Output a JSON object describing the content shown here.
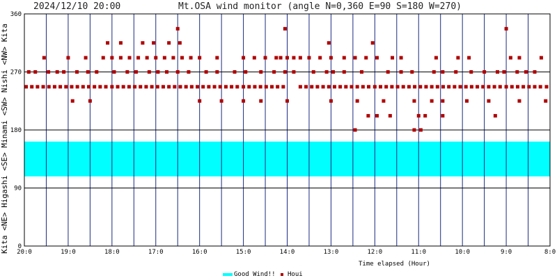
{
  "chart_data": {
    "type": "scatter",
    "title": "Mt.OSA wind monitor (angle N=0,360 E=90 S=180 W=270)",
    "timestamp": "2024/12/10 20:00",
    "xlabel": "Time elapsed (Hour)",
    "ylabel": "Kita <NE> Higashi <SE> Minami <SW> Nishi <NW> Kita",
    "x_ticks": [
      "20:0",
      "19:0",
      "18:0",
      "17:0",
      "16:0",
      "15:0",
      "14:0",
      "13:0",
      "12:0",
      "11:0",
      "10:0",
      "9:0",
      "8:0"
    ],
    "y_ticks": [
      0,
      90,
      180,
      270,
      360
    ],
    "ylim": [
      0,
      360
    ],
    "xlim": [
      0,
      12
    ],
    "x_axis_note": "hours elapsed before 2024/12/10 20:00, axis runs right to left in time",
    "grid": true,
    "legend_position": "bottom",
    "band": {
      "name": "Good Wind!!",
      "from": 108,
      "to": 162,
      "color": "#00ffff"
    },
    "series": [
      {
        "name": "Houi",
        "color": "#b00000",
        "points": [
          [
            0.04,
            247
          ],
          [
            0.17,
            247
          ],
          [
            0.3,
            247
          ],
          [
            0.43,
            247
          ],
          [
            0.56,
            247
          ],
          [
            0.69,
            247
          ],
          [
            0.82,
            247
          ],
          [
            0.95,
            247
          ],
          [
            1.08,
            247
          ],
          [
            1.21,
            247
          ],
          [
            1.34,
            247
          ],
          [
            1.47,
            247
          ],
          [
            1.6,
            247
          ],
          [
            1.73,
            247
          ],
          [
            1.86,
            247
          ],
          [
            2.0,
            247
          ],
          [
            2.13,
            247
          ],
          [
            2.26,
            247
          ],
          [
            2.39,
            247
          ],
          [
            2.52,
            247
          ],
          [
            2.65,
            247
          ],
          [
            2.78,
            247
          ],
          [
            2.91,
            247
          ],
          [
            3.04,
            247
          ],
          [
            3.17,
            247
          ],
          [
            3.3,
            247
          ],
          [
            3.43,
            247
          ],
          [
            3.56,
            247
          ],
          [
            3.69,
            247
          ],
          [
            3.82,
            247
          ],
          [
            3.95,
            247
          ],
          [
            4.08,
            247
          ],
          [
            4.21,
            247
          ],
          [
            4.34,
            247
          ],
          [
            4.47,
            247
          ],
          [
            4.6,
            247
          ],
          [
            4.73,
            247
          ],
          [
            4.86,
            247
          ],
          [
            5.0,
            247
          ],
          [
            5.13,
            247
          ],
          [
            5.26,
            247
          ],
          [
            5.39,
            247
          ],
          [
            5.52,
            247
          ],
          [
            5.65,
            247
          ],
          [
            5.78,
            247
          ],
          [
            5.91,
            247
          ],
          [
            6.3,
            247
          ],
          [
            6.43,
            247
          ],
          [
            6.56,
            247
          ],
          [
            6.69,
            247
          ],
          [
            6.82,
            247
          ],
          [
            6.95,
            247
          ],
          [
            7.08,
            247
          ],
          [
            7.21,
            247
          ],
          [
            7.34,
            247
          ],
          [
            7.47,
            247
          ],
          [
            7.6,
            247
          ],
          [
            7.73,
            247
          ],
          [
            7.86,
            247
          ],
          [
            8.0,
            247
          ],
          [
            8.13,
            247
          ],
          [
            8.26,
            247
          ],
          [
            8.39,
            247
          ],
          [
            8.52,
            247
          ],
          [
            8.65,
            247
          ],
          [
            8.78,
            247
          ],
          [
            8.91,
            247
          ],
          [
            9.04,
            247
          ],
          [
            9.17,
            247
          ],
          [
            9.3,
            247
          ],
          [
            9.43,
            247
          ],
          [
            9.56,
            247
          ],
          [
            9.69,
            247
          ],
          [
            9.82,
            247
          ],
          [
            9.95,
            247
          ],
          [
            10.08,
            247
          ],
          [
            10.21,
            247
          ],
          [
            10.34,
            247
          ],
          [
            10.47,
            247
          ],
          [
            10.6,
            247
          ],
          [
            10.73,
            247
          ],
          [
            10.86,
            247
          ],
          [
            11.0,
            247
          ],
          [
            11.13,
            247
          ],
          [
            11.26,
            247
          ],
          [
            11.39,
            247
          ],
          [
            11.52,
            247
          ],
          [
            11.65,
            247
          ],
          [
            11.78,
            247
          ],
          [
            11.92,
            247
          ],
          [
            0.1,
            270
          ],
          [
            0.25,
            270
          ],
          [
            0.55,
            270
          ],
          [
            0.75,
            270
          ],
          [
            0.9,
            270
          ],
          [
            1.2,
            270
          ],
          [
            1.45,
            270
          ],
          [
            1.65,
            270
          ],
          [
            2.05,
            270
          ],
          [
            2.35,
            270
          ],
          [
            2.55,
            270
          ],
          [
            2.85,
            270
          ],
          [
            3.05,
            270
          ],
          [
            3.25,
            270
          ],
          [
            3.5,
            270
          ],
          [
            3.75,
            270
          ],
          [
            4.15,
            270
          ],
          [
            4.4,
            270
          ],
          [
            4.8,
            270
          ],
          [
            5.05,
            270
          ],
          [
            5.4,
            270
          ],
          [
            5.7,
            270
          ],
          [
            5.95,
            270
          ],
          [
            6.15,
            270
          ],
          [
            6.6,
            270
          ],
          [
            6.9,
            270
          ],
          [
            7.05,
            270
          ],
          [
            7.3,
            270
          ],
          [
            7.7,
            270
          ],
          [
            8.3,
            270
          ],
          [
            8.6,
            270
          ],
          [
            8.85,
            270
          ],
          [
            9.35,
            270
          ],
          [
            9.55,
            270
          ],
          [
            9.85,
            270
          ],
          [
            10.2,
            270
          ],
          [
            10.5,
            270
          ],
          [
            10.8,
            270
          ],
          [
            10.95,
            270
          ],
          [
            11.25,
            270
          ],
          [
            11.45,
            270
          ],
          [
            11.65,
            270
          ],
          [
            0.45,
            292
          ],
          [
            1.0,
            292
          ],
          [
            1.4,
            292
          ],
          [
            1.8,
            292
          ],
          [
            2.0,
            292
          ],
          [
            2.2,
            292
          ],
          [
            2.4,
            292
          ],
          [
            2.6,
            292
          ],
          [
            2.8,
            292
          ],
          [
            3.0,
            292
          ],
          [
            3.2,
            292
          ],
          [
            3.4,
            292
          ],
          [
            3.6,
            292
          ],
          [
            3.8,
            292
          ],
          [
            4.0,
            292
          ],
          [
            4.4,
            292
          ],
          [
            5.0,
            292
          ],
          [
            5.25,
            292
          ],
          [
            5.5,
            292
          ],
          [
            5.75,
            292
          ],
          [
            5.85,
            292
          ],
          [
            6.0,
            292
          ],
          [
            6.15,
            292
          ],
          [
            6.3,
            292
          ],
          [
            6.5,
            292
          ],
          [
            6.75,
            292
          ],
          [
            7.0,
            292
          ],
          [
            7.3,
            292
          ],
          [
            7.55,
            292
          ],
          [
            7.8,
            292
          ],
          [
            8.05,
            292
          ],
          [
            8.4,
            292
          ],
          [
            8.6,
            292
          ],
          [
            9.4,
            292
          ],
          [
            9.9,
            292
          ],
          [
            10.15,
            292
          ],
          [
            11.1,
            292
          ],
          [
            11.3,
            292
          ],
          [
            11.8,
            292
          ],
          [
            1.9,
            315
          ],
          [
            2.2,
            315
          ],
          [
            2.7,
            315
          ],
          [
            2.95,
            315
          ],
          [
            3.3,
            315
          ],
          [
            3.55,
            315
          ],
          [
            6.95,
            315
          ],
          [
            7.95,
            315
          ],
          [
            3.5,
            337
          ],
          [
            5.95,
            337
          ],
          [
            11.0,
            337
          ],
          [
            1.1,
            225
          ],
          [
            1.5,
            225
          ],
          [
            4.0,
            225
          ],
          [
            4.5,
            225
          ],
          [
            5.0,
            225
          ],
          [
            5.4,
            225
          ],
          [
            6.0,
            225
          ],
          [
            7.0,
            225
          ],
          [
            7.6,
            225
          ],
          [
            8.2,
            225
          ],
          [
            8.9,
            225
          ],
          [
            9.3,
            225
          ],
          [
            9.55,
            225
          ],
          [
            10.1,
            225
          ],
          [
            10.6,
            225
          ],
          [
            11.3,
            225
          ],
          [
            11.9,
            225
          ],
          [
            7.85,
            202
          ],
          [
            8.05,
            202
          ],
          [
            8.35,
            202
          ],
          [
            9.0,
            202
          ],
          [
            9.15,
            202
          ],
          [
            9.55,
            202
          ],
          [
            10.75,
            202
          ],
          [
            7.55,
            180
          ],
          [
            8.9,
            180
          ],
          [
            9.05,
            180
          ]
        ]
      }
    ]
  }
}
